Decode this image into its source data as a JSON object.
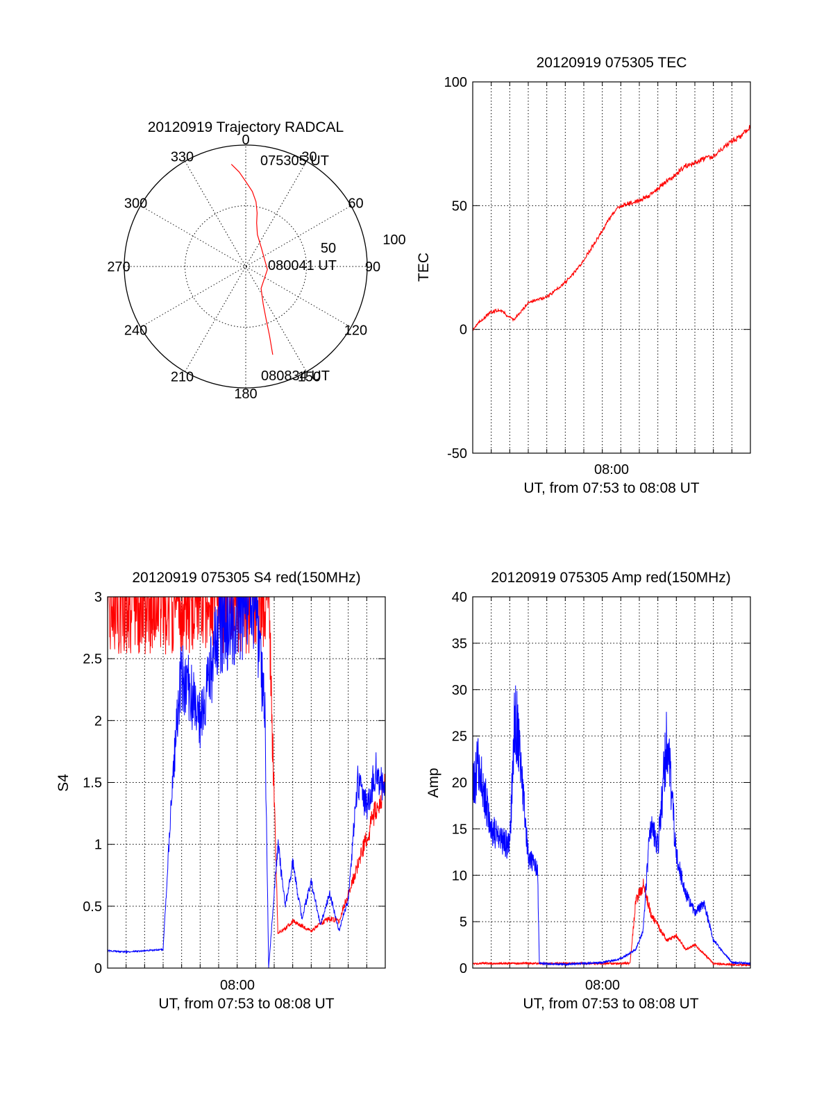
{
  "colors": {
    "red": "#ff0000",
    "blue": "#0000ff",
    "axis": "#000000"
  },
  "chart_data": [
    {
      "type": "polar",
      "title": "20120919 Trajectory RADCAL",
      "azimuth_labels": [
        "0",
        "30",
        "60",
        "90",
        "120",
        "150",
        "180",
        "210",
        "240",
        "270",
        "300",
        "330"
      ],
      "radial_labels": [
        "50",
        "100"
      ],
      "point_labels": [
        "075305 UT",
        "080041 UT",
        "080834 UT"
      ],
      "trajectory": {
        "color": "red",
        "azimuth_deg": [
          352,
          356,
          0,
          5,
          9,
          12,
          14,
          20,
          40,
          98,
          145,
          155,
          159,
          161,
          163
        ],
        "zenith_dist": [
          85,
          78,
          70,
          62,
          54,
          45,
          37,
          28,
          20,
          18,
          22,
          34,
          47,
          60,
          76
        ]
      }
    },
    {
      "type": "line",
      "title": "20120919 075305 TEC",
      "ylabel": "TEC",
      "xlabel": "UT, from 07:53 to 08:08 UT",
      "x_tick_labels": [
        "08:00"
      ],
      "xlim": [
        0,
        15
      ],
      "ylim": [
        -50,
        100
      ],
      "y_ticks": [
        -50,
        0,
        50,
        100
      ],
      "series": [
        {
          "color": "red",
          "x": [
            0,
            0.5,
            1,
            1.5,
            1.8,
            2.2,
            2.5,
            3,
            3.5,
            4,
            4.5,
            5,
            5.5,
            6,
            6.5,
            7,
            7.5,
            8,
            8.5,
            9,
            9.5,
            10,
            10.5,
            11,
            11.5,
            12,
            12.5,
            13,
            13.5,
            14,
            14.5,
            15
          ],
          "y": [
            0,
            4,
            7,
            8,
            6,
            4,
            6,
            11,
            12,
            13,
            16,
            19,
            23,
            28,
            34,
            40,
            46,
            50,
            51,
            52,
            54,
            57,
            60,
            63,
            66,
            67,
            69,
            70,
            73,
            76,
            78,
            82
          ]
        }
      ]
    },
    {
      "type": "line",
      "title": "20120919 075305 S4 red(150MHz)",
      "ylabel": "S4",
      "xlabel": "UT, from 07:53 to 08:08 UT",
      "x_tick_labels": [
        "08:00"
      ],
      "xlim": [
        0,
        15
      ],
      "ylim": [
        0,
        3
      ],
      "y_tick_labels": [
        "0",
        "0.5",
        "1",
        "1.5",
        "2",
        "2.5",
        "3"
      ],
      "series": [
        {
          "color": "red",
          "x": [
            0,
            8.7,
            9.2,
            9.6,
            10,
            10.5,
            11,
            11.5,
            12,
            12.5,
            13,
            15
          ],
          "y": [
            3.0,
            3.0,
            0.28,
            0.32,
            0.38,
            0.34,
            0.3,
            0.36,
            0.4,
            0.38,
            0.6,
            1.5
          ]
        },
        {
          "color": "blue",
          "x": [
            0,
            1,
            2,
            3,
            3.5,
            4,
            5,
            6,
            7,
            8,
            8.5,
            8.7,
            9.2,
            9.6,
            10,
            10.5,
            11,
            11.5,
            12,
            12.5,
            13,
            13.5,
            14,
            14.5,
            15
          ],
          "y": [
            0.14,
            0.13,
            0.14,
            0.15,
            1.5,
            2.4,
            2.0,
            2.7,
            2.9,
            3.0,
            2.0,
            0.0,
            1.0,
            0.5,
            0.85,
            0.4,
            0.7,
            0.35,
            0.6,
            0.3,
            0.55,
            1.5,
            1.3,
            1.6,
            1.4
          ]
        }
      ]
    },
    {
      "type": "line",
      "title": "20120919 075305 Amp red(150MHz)",
      "ylabel": "Amp",
      "xlabel": "UT, from 07:53 to 08:08 UT",
      "x_tick_labels": [
        "08:00"
      ],
      "xlim": [
        0,
        15
      ],
      "ylim": [
        0,
        40
      ],
      "y_ticks": [
        0,
        5,
        10,
        15,
        20,
        25,
        30,
        35,
        40
      ],
      "series": [
        {
          "color": "red",
          "x": [
            0,
            3.5,
            8.5,
            8.8,
            9.2,
            9.6,
            10,
            10.5,
            11,
            11.5,
            12,
            12.5,
            13,
            15
          ],
          "y": [
            0.5,
            0.5,
            0.5,
            7.0,
            9.0,
            6.0,
            4.5,
            3.0,
            3.5,
            2.0,
            2.5,
            1.5,
            0.5,
            0.3
          ]
        },
        {
          "color": "blue",
          "x": [
            0,
            0.3,
            1,
            2,
            2.3,
            3,
            3.5,
            3.6,
            5,
            7,
            8,
            8.8,
            9.2,
            9.6,
            10,
            10.5,
            11,
            11.5,
            12,
            12.5,
            13,
            14,
            15
          ],
          "y": [
            19,
            22,
            15,
            13,
            28,
            12,
            11,
            0.5,
            0.4,
            0.6,
            1.0,
            2.0,
            4.0,
            16.0,
            13.0,
            25.0,
            12.0,
            8.0,
            6.0,
            7.0,
            3.0,
            0.6,
            0.5
          ]
        }
      ]
    }
  ]
}
